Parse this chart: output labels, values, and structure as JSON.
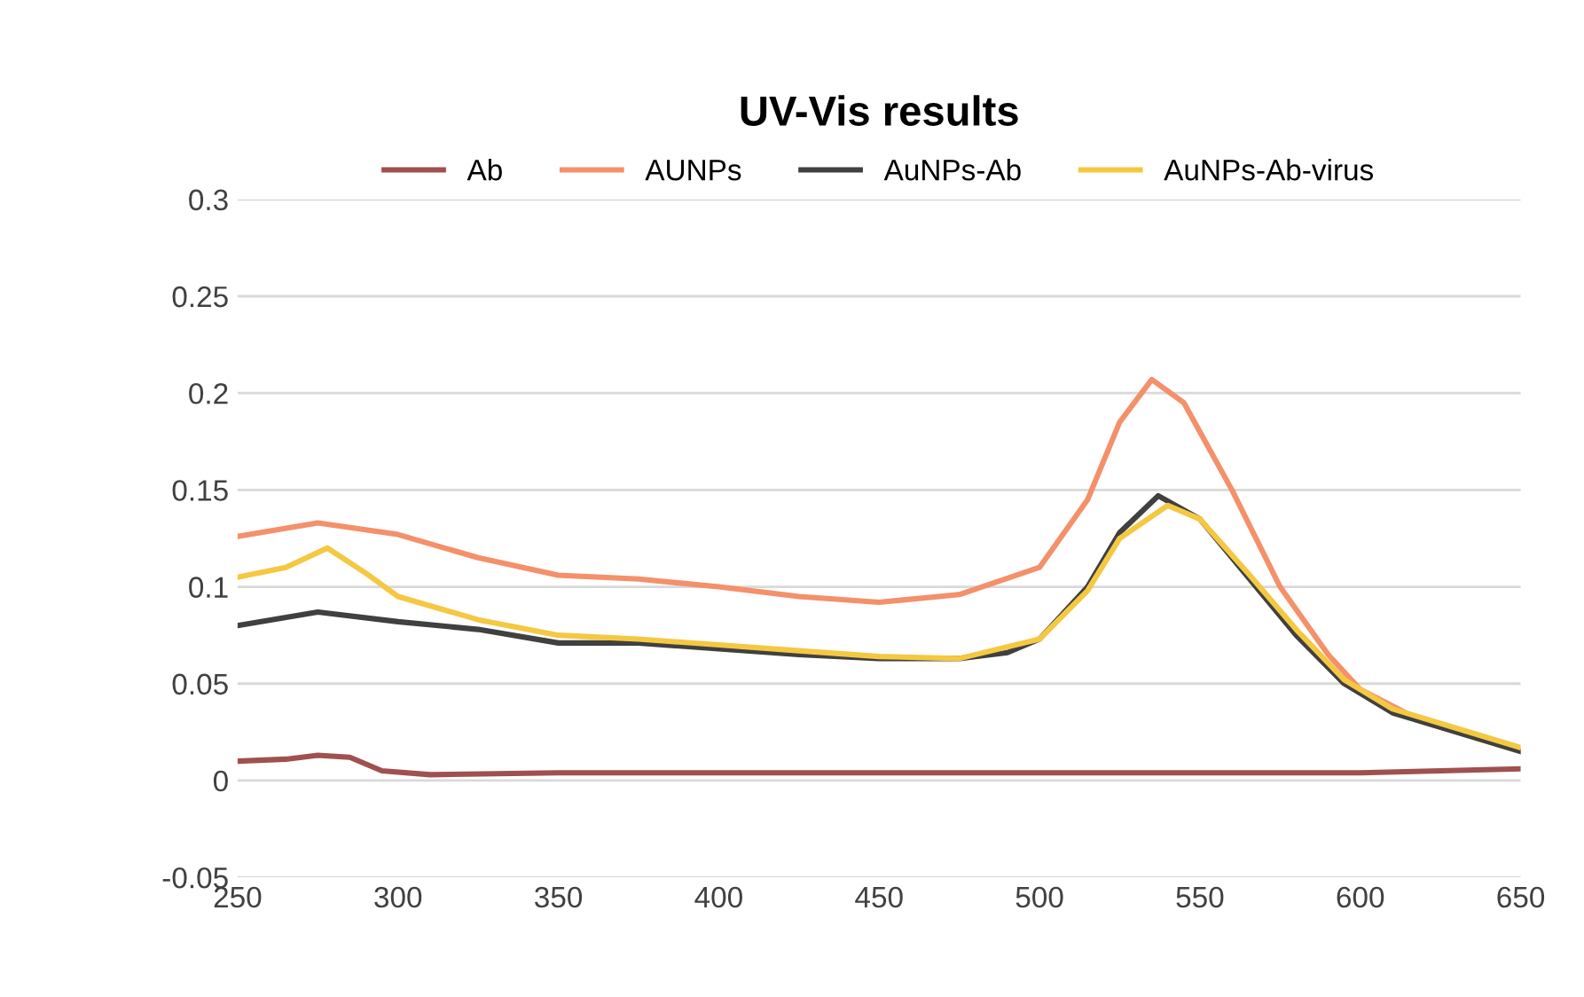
{
  "chart_data": {
    "type": "line",
    "title": "UV-Vis results",
    "xlim": [
      250,
      650
    ],
    "xticks": [
      250,
      300,
      350,
      400,
      450,
      500,
      550,
      600,
      650
    ],
    "ylim": [
      -0.05,
      0.3
    ],
    "yticks": [
      -0.05,
      0,
      0.05,
      0.1,
      0.15,
      0.2,
      0.25,
      0.3
    ],
    "grid": "y",
    "legend": "top",
    "marker": "none",
    "line_style": "solid",
    "series": [
      {
        "name": "Ab",
        "color": "#a0504f",
        "x": [
          250,
          265,
          275,
          285,
          295,
          310,
          350,
          400,
          450,
          500,
          550,
          600,
          625,
          650
        ],
        "values": [
          0.01,
          0.011,
          0.013,
          0.012,
          0.005,
          0.003,
          0.004,
          0.004,
          0.004,
          0.004,
          0.004,
          0.004,
          0.005,
          0.006
        ]
      },
      {
        "name": "AUNPs",
        "color": "#f4906a",
        "x": [
          250,
          275,
          300,
          325,
          350,
          375,
          400,
          425,
          450,
          475,
          500,
          515,
          525,
          535,
          545,
          560,
          575,
          590,
          600,
          620,
          650
        ],
        "values": [
          0.126,
          0.133,
          0.127,
          0.115,
          0.106,
          0.104,
          0.1,
          0.095,
          0.092,
          0.096,
          0.11,
          0.145,
          0.185,
          0.207,
          0.195,
          0.15,
          0.1,
          0.065,
          0.047,
          0.03,
          0.015
        ]
      },
      {
        "name": "AuNPs-Ab",
        "color": "#404040",
        "x": [
          250,
          275,
          300,
          325,
          350,
          375,
          400,
          425,
          450,
          475,
          490,
          500,
          515,
          525,
          537,
          550,
          565,
          580,
          595,
          610,
          630,
          650
        ],
        "values": [
          0.08,
          0.087,
          0.082,
          0.078,
          0.071,
          0.071,
          0.068,
          0.065,
          0.063,
          0.063,
          0.066,
          0.073,
          0.1,
          0.128,
          0.147,
          0.135,
          0.105,
          0.075,
          0.05,
          0.035,
          0.025,
          0.015
        ]
      },
      {
        "name": "AuNPs-Ab-virus",
        "color": "#f5c842",
        "x": [
          250,
          265,
          278,
          290,
          300,
          325,
          350,
          375,
          400,
          425,
          450,
          475,
          500,
          515,
          525,
          540,
          550,
          565,
          580,
          595,
          610,
          630,
          650
        ],
        "values": [
          0.105,
          0.11,
          0.12,
          0.107,
          0.095,
          0.083,
          0.075,
          0.073,
          0.07,
          0.067,
          0.064,
          0.063,
          0.073,
          0.098,
          0.125,
          0.142,
          0.135,
          0.107,
          0.078,
          0.052,
          0.037,
          0.027,
          0.017
        ]
      }
    ]
  }
}
